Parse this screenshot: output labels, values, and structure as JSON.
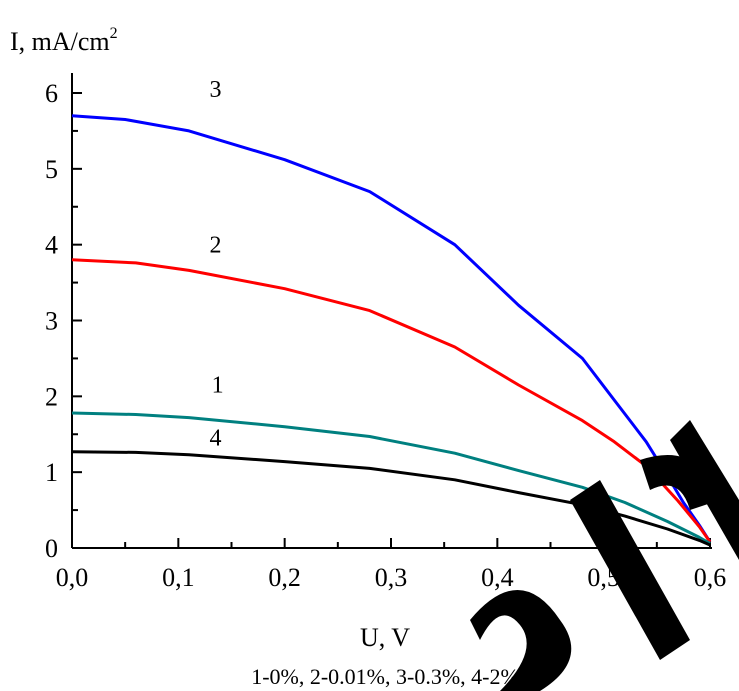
{
  "chart_data": {
    "type": "line",
    "ylabel": "I, mA/cm",
    "ylabel_sup": "2",
    "xlabel": "U, V",
    "caption": "1-0%, 2-0.01%, 3-0.3%, 4-2%",
    "xlim": [
      0,
      0.6
    ],
    "ylim": [
      0,
      6
    ],
    "x_ticks": [
      0,
      0.1,
      0.2,
      0.3,
      0.4,
      0.5,
      0.6
    ],
    "x_tick_labels": [
      "0,0",
      "0,1",
      "0,2",
      "0,3",
      "0,4",
      "0,5",
      "0,6"
    ],
    "y_ticks": [
      0,
      1,
      2,
      3,
      4,
      5,
      6
    ],
    "y_tick_labels": [
      "0",
      "1",
      "2",
      "3",
      "4",
      "5",
      "6"
    ],
    "grid": false,
    "series": [
      {
        "name": "3",
        "color": "#0000ff",
        "points": [
          [
            0,
            5.7
          ],
          [
            0.05,
            5.65
          ],
          [
            0.11,
            5.5
          ],
          [
            0.2,
            5.12
          ],
          [
            0.28,
            4.7
          ],
          [
            0.36,
            4.0
          ],
          [
            0.42,
            3.2
          ],
          [
            0.48,
            2.5
          ],
          [
            0.51,
            1.95
          ],
          [
            0.54,
            1.4
          ],
          [
            0.56,
            0.95
          ],
          [
            0.575,
            0.6
          ],
          [
            0.59,
            0.3
          ],
          [
            0.6,
            0.08
          ]
        ]
      },
      {
        "name": "2",
        "color": "#ff0000",
        "points": [
          [
            0,
            3.8
          ],
          [
            0.06,
            3.76
          ],
          [
            0.11,
            3.66
          ],
          [
            0.2,
            3.42
          ],
          [
            0.28,
            3.13
          ],
          [
            0.36,
            2.65
          ],
          [
            0.42,
            2.15
          ],
          [
            0.48,
            1.68
          ],
          [
            0.51,
            1.4
          ],
          [
            0.54,
            1.08
          ],
          [
            0.57,
            0.62
          ],
          [
            0.59,
            0.28
          ],
          [
            0.6,
            0.08
          ]
        ]
      },
      {
        "name": "1",
        "color": "#008080",
        "points": [
          [
            0,
            1.78
          ],
          [
            0.06,
            1.76
          ],
          [
            0.11,
            1.72
          ],
          [
            0.2,
            1.6
          ],
          [
            0.28,
            1.47
          ],
          [
            0.36,
            1.25
          ],
          [
            0.42,
            1.02
          ],
          [
            0.48,
            0.8
          ],
          [
            0.52,
            0.6
          ],
          [
            0.56,
            0.35
          ],
          [
            0.59,
            0.14
          ],
          [
            0.6,
            0.06
          ]
        ]
      },
      {
        "name": "4",
        "color": "#000000",
        "points": [
          [
            0,
            1.27
          ],
          [
            0.06,
            1.26
          ],
          [
            0.11,
            1.23
          ],
          [
            0.2,
            1.14
          ],
          [
            0.28,
            1.05
          ],
          [
            0.36,
            0.9
          ],
          [
            0.42,
            0.73
          ],
          [
            0.48,
            0.57
          ],
          [
            0.52,
            0.42
          ],
          [
            0.56,
            0.25
          ],
          [
            0.59,
            0.1
          ],
          [
            0.6,
            0.04
          ]
        ]
      }
    ],
    "curve_labels": [
      {
        "text": "3",
        "x": 0.135,
        "y": 5.95
      },
      {
        "text": "2",
        "x": 0.135,
        "y": 3.9
      },
      {
        "text": "1",
        "x": 0.137,
        "y": 2.05
      },
      {
        "text": "4",
        "x": 0.135,
        "y": 1.35
      }
    ]
  },
  "watermark": {
    "color": "#000000"
  }
}
